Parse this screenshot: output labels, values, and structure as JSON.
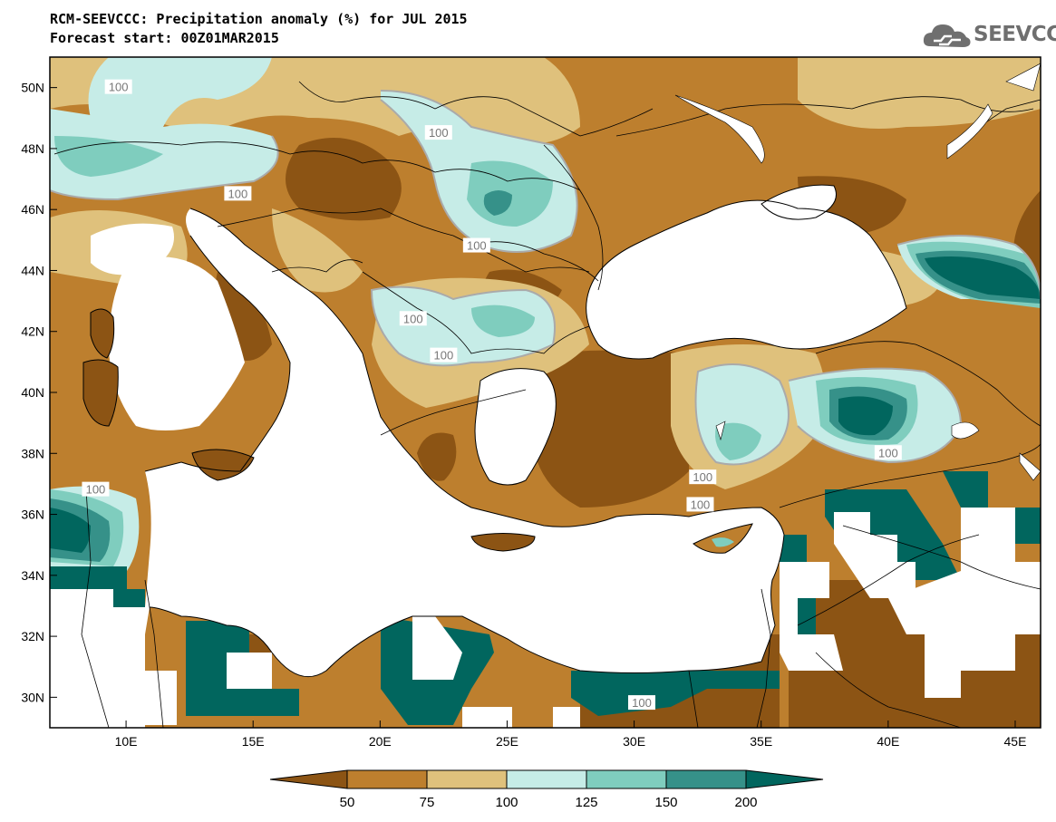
{
  "title_line1": "RCM-SEEVCCC: Precipitation anomaly (%) for JUL 2015",
  "title_line2": "Forecast start: 00Z01MAR2015",
  "logo_text": "SEEVCCC",
  "map": {
    "lon_range": [
      7,
      46
    ],
    "lat_range": [
      29,
      51
    ],
    "lon_ticks": [
      {
        "value": 10,
        "label": "10E"
      },
      {
        "value": 15,
        "label": "15E"
      },
      {
        "value": 20,
        "label": "20E"
      },
      {
        "value": 25,
        "label": "25E"
      },
      {
        "value": 30,
        "label": "30E"
      },
      {
        "value": 35,
        "label": "35E"
      },
      {
        "value": 40,
        "label": "40E"
      },
      {
        "value": 45,
        "label": "45E"
      }
    ],
    "lat_ticks": [
      {
        "value": 30,
        "label": "30N"
      },
      {
        "value": 32,
        "label": "32N"
      },
      {
        "value": 34,
        "label": "34N"
      },
      {
        "value": 36,
        "label": "36N"
      },
      {
        "value": 38,
        "label": "38N"
      },
      {
        "value": 40,
        "label": "40N"
      },
      {
        "value": 42,
        "label": "42N"
      },
      {
        "value": 44,
        "label": "44N"
      },
      {
        "value": 46,
        "label": "46N"
      },
      {
        "value": 48,
        "label": "48N"
      },
      {
        "value": 50,
        "label": "50N"
      }
    ],
    "contour_labels": [
      {
        "text": "100",
        "lon": 9.7,
        "lat": 50.0
      },
      {
        "text": "100",
        "lon": 22.3,
        "lat": 48.5
      },
      {
        "text": "100",
        "lon": 14.4,
        "lat": 46.5
      },
      {
        "text": "100",
        "lon": 23.8,
        "lat": 44.8
      },
      {
        "text": "100",
        "lon": 21.3,
        "lat": 42.4
      },
      {
        "text": "100",
        "lon": 22.5,
        "lat": 41.2
      },
      {
        "text": "100",
        "lon": 32.7,
        "lat": 37.2
      },
      {
        "text": "100",
        "lon": 32.6,
        "lat": 36.3
      },
      {
        "text": "100",
        "lon": 40.0,
        "lat": 38.0
      },
      {
        "text": "100",
        "lon": 8.8,
        "lat": 36.8
      },
      {
        "text": "100",
        "lon": 30.3,
        "lat": 29.8
      }
    ]
  },
  "colors": {
    "lt50": "#8c5414",
    "50_75": "#bd7f2e",
    "75_100": "#dfc17c",
    "100_125": "#c6ece7",
    "125_150": "#7fcdbe",
    "150_200": "#369189",
    "gt200": "#01665e",
    "sea": "#ffffff",
    "contour100": "#aaaaaa"
  },
  "colorbar": {
    "labels": [
      "50",
      "75",
      "100",
      "125",
      "150",
      "200"
    ]
  }
}
